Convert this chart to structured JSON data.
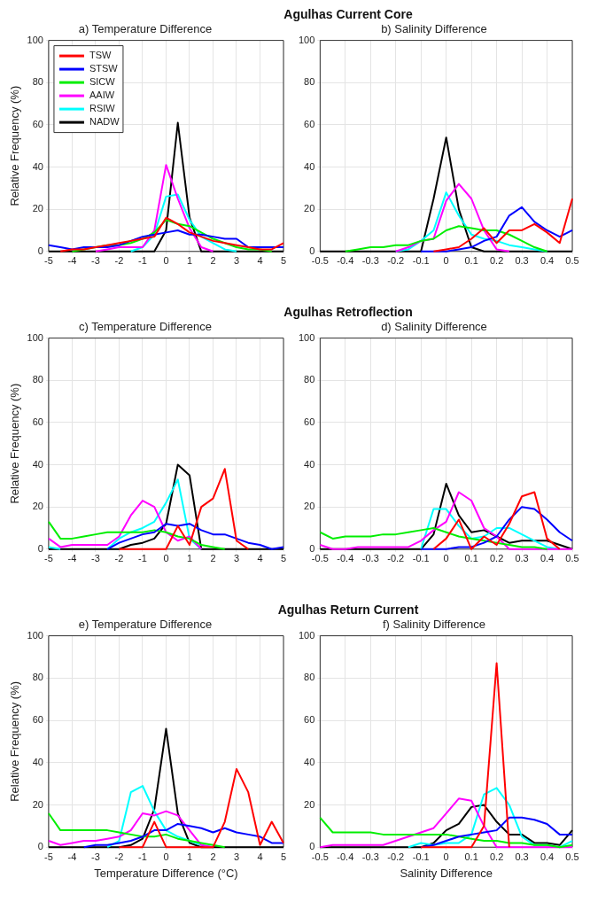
{
  "chart_data": [
    {
      "type": "line",
      "title": "a) Temperature Difference",
      "ylabel": "Relative Frequency (%)",
      "annotations": [
        "Agulhas Current Core"
      ],
      "x": [
        -5,
        -4.5,
        -4,
        -3.5,
        -3,
        -2.5,
        -2,
        -1.5,
        -1,
        -0.5,
        0,
        0.5,
        1,
        1.5,
        2,
        2.5,
        3,
        3.5,
        4,
        4.5,
        5
      ],
      "xlim": [
        -5,
        5
      ],
      "xticks": [
        -5,
        -4,
        -3,
        -2,
        -1,
        0,
        1,
        2,
        3,
        4,
        5
      ],
      "ylim": [
        0,
        100
      ],
      "yticks": [
        0,
        20,
        40,
        60,
        80,
        100
      ],
      "grid": true,
      "legend": "top left",
      "series": [
        {
          "name": "TSW",
          "color": "#ff0000",
          "values": [
            null,
            0,
            1,
            1,
            2,
            3,
            4,
            5,
            6,
            7,
            16,
            13,
            9,
            7,
            5,
            4,
            3,
            2,
            1,
            1,
            4
          ]
        },
        {
          "name": "STSW",
          "color": "#0000ff",
          "values": [
            3,
            2,
            1,
            2,
            2,
            2,
            3,
            5,
            7,
            8,
            9,
            10,
            8,
            8,
            7,
            6,
            6,
            2,
            2,
            2,
            2
          ]
        },
        {
          "name": "SICW",
          "color": "#00ee00",
          "values": [
            null,
            null,
            0,
            1,
            2,
            3,
            3,
            4,
            6,
            9,
            15,
            13,
            12,
            9,
            6,
            4,
            2,
            1,
            1,
            0,
            null
          ]
        },
        {
          "name": "AAIW",
          "color": "#ff00ff",
          "values": [
            null,
            null,
            null,
            null,
            0,
            1,
            2,
            2,
            2,
            10,
            41,
            25,
            11,
            2,
            0,
            null,
            null,
            null,
            null,
            null,
            null
          ]
        },
        {
          "name": "RSIW",
          "color": "#00ffff",
          "values": [
            null,
            null,
            null,
            null,
            null,
            null,
            null,
            0,
            2,
            8,
            26,
            27,
            15,
            7,
            4,
            1,
            0,
            null,
            null,
            null,
            null
          ]
        },
        {
          "name": "NADW",
          "color": "#000000",
          "values": [
            0,
            0,
            0,
            0,
            0,
            0,
            0,
            0,
            0,
            0,
            10,
            61,
            16,
            0,
            0,
            0,
            0,
            0,
            0,
            0,
            0
          ]
        }
      ]
    },
    {
      "type": "line",
      "title": "b) Salinity Difference",
      "x": [
        -0.5,
        -0.45,
        -0.4,
        -0.35,
        -0.3,
        -0.25,
        -0.2,
        -0.15,
        -0.1,
        -0.05,
        0,
        0.05,
        0.1,
        0.15,
        0.2,
        0.25,
        0.3,
        0.35,
        0.4,
        0.45,
        0.5
      ],
      "xlim": [
        -0.5,
        0.5
      ],
      "xticks": [
        -0.5,
        -0.4,
        -0.3,
        -0.2,
        -0.1,
        0,
        0.1,
        0.2,
        0.3,
        0.4,
        0.5
      ],
      "ylim": [
        0,
        100
      ],
      "yticks": [
        0,
        20,
        40,
        60,
        80,
        100
      ],
      "grid": true,
      "series": [
        {
          "color": "#ff0000",
          "values": [
            null,
            null,
            null,
            null,
            null,
            null,
            null,
            null,
            null,
            0,
            1,
            2,
            6,
            11,
            4,
            10,
            10,
            13,
            9,
            4,
            25
          ]
        },
        {
          "color": "#0000ff",
          "values": [
            null,
            null,
            null,
            null,
            null,
            null,
            null,
            null,
            0,
            0,
            0,
            1,
            2,
            5,
            7,
            17,
            21,
            14,
            10,
            7,
            10
          ]
        },
        {
          "color": "#00ee00",
          "values": [
            null,
            null,
            0,
            1,
            2,
            2,
            3,
            3,
            5,
            6,
            10,
            12,
            11,
            10,
            10,
            8,
            5,
            2,
            0,
            null,
            null
          ]
        },
        {
          "color": "#ff00ff",
          "values": [
            null,
            null,
            null,
            null,
            null,
            null,
            0,
            2,
            5,
            6,
            24,
            32,
            25,
            10,
            1,
            0,
            null,
            null,
            null,
            null,
            null
          ]
        },
        {
          "color": "#00ffff",
          "values": [
            null,
            null,
            null,
            null,
            null,
            null,
            0,
            1,
            5,
            10,
            28,
            17,
            8,
            6,
            5,
            3,
            2,
            1,
            0,
            null,
            null
          ]
        },
        {
          "color": "#000000",
          "values": [
            0,
            0,
            0,
            0,
            0,
            0,
            0,
            0,
            0,
            25,
            54,
            20,
            2,
            0,
            0,
            0,
            0,
            0,
            0,
            0,
            0
          ]
        }
      ]
    },
    {
      "type": "line",
      "title": "c) Temperature Difference",
      "ylabel": "Relative Frequency (%)",
      "annotations": [
        "Agulhas Retroflection"
      ],
      "x": [
        -5,
        -4.5,
        -4,
        -3.5,
        -3,
        -2.5,
        -2,
        -1.5,
        -1,
        -0.5,
        0,
        0.5,
        1,
        1.5,
        2,
        2.5,
        3,
        3.5,
        4,
        4.5,
        5
      ],
      "xlim": [
        -5,
        5
      ],
      "xticks": [
        -5,
        -4,
        -3,
        -2,
        -1,
        0,
        1,
        2,
        3,
        4,
        5
      ],
      "ylim": [
        0,
        100
      ],
      "yticks": [
        0,
        20,
        40,
        60,
        80,
        100
      ],
      "grid": true,
      "series": [
        {
          "color": "#ff0000",
          "values": [
            null,
            null,
            null,
            null,
            null,
            null,
            0,
            0,
            0,
            0,
            0,
            11,
            2,
            20,
            24,
            38,
            4,
            0,
            null,
            null,
            null
          ]
        },
        {
          "color": "#0000ff",
          "values": [
            null,
            null,
            null,
            null,
            null,
            0,
            3,
            5,
            7,
            8,
            12,
            11,
            12,
            9,
            7,
            7,
            5,
            3,
            2,
            0,
            1
          ]
        },
        {
          "color": "#00ee00",
          "values": [
            13,
            5,
            5,
            6,
            7,
            8,
            8,
            8,
            8,
            9,
            8,
            6,
            5,
            2,
            1,
            0,
            null,
            null,
            null,
            null,
            null
          ]
        },
        {
          "color": "#ff00ff",
          "values": [
            5,
            1,
            2,
            2,
            2,
            2,
            6,
            16,
            23,
            20,
            8,
            4,
            6,
            0,
            null,
            null,
            null,
            null,
            null,
            null,
            null
          ]
        },
        {
          "color": "#00ffff",
          "values": [
            1,
            0,
            null,
            null,
            null,
            0,
            5,
            8,
            10,
            13,
            22,
            33,
            5,
            0,
            null,
            null,
            null,
            null,
            null,
            null,
            null
          ]
        },
        {
          "color": "#000000",
          "values": [
            0,
            0,
            0,
            0,
            0,
            0,
            0,
            2,
            3,
            5,
            12,
            40,
            35,
            0,
            0,
            0,
            0,
            0,
            0,
            0,
            0
          ]
        }
      ]
    },
    {
      "type": "line",
      "title": "d) Salinity Difference",
      "x": [
        -0.5,
        -0.45,
        -0.4,
        -0.35,
        -0.3,
        -0.25,
        -0.2,
        -0.15,
        -0.1,
        -0.05,
        0,
        0.05,
        0.1,
        0.15,
        0.2,
        0.25,
        0.3,
        0.35,
        0.4,
        0.45,
        0.5
      ],
      "xlim": [
        -0.5,
        0.5
      ],
      "xticks": [
        -0.5,
        -0.4,
        -0.3,
        -0.2,
        -0.1,
        0,
        0.1,
        0.2,
        0.3,
        0.4,
        0.5
      ],
      "ylim": [
        0,
        100
      ],
      "yticks": [
        0,
        20,
        40,
        60,
        80,
        100
      ],
      "grid": true,
      "series": [
        {
          "color": "#ff0000",
          "values": [
            null,
            null,
            null,
            null,
            null,
            null,
            null,
            null,
            null,
            0,
            5,
            14,
            0,
            6,
            2,
            12,
            25,
            27,
            5,
            0,
            null
          ]
        },
        {
          "color": "#0000ff",
          "values": [
            null,
            null,
            null,
            null,
            null,
            null,
            null,
            null,
            0,
            0,
            0,
            1,
            1,
            3,
            6,
            14,
            20,
            19,
            14,
            8,
            4
          ]
        },
        {
          "color": "#00ee00",
          "values": [
            8,
            5,
            6,
            6,
            6,
            7,
            7,
            8,
            9,
            10,
            8,
            6,
            5,
            4,
            3,
            2,
            1,
            1,
            0,
            null,
            null
          ]
        },
        {
          "color": "#ff00ff",
          "values": [
            2,
            0,
            0,
            1,
            1,
            1,
            1,
            1,
            4,
            9,
            13,
            27,
            23,
            10,
            6,
            0,
            0,
            0,
            0,
            0,
            0
          ]
        },
        {
          "color": "#00ffff",
          "values": [
            null,
            null,
            null,
            null,
            null,
            null,
            null,
            null,
            0,
            19,
            19,
            11,
            5,
            6,
            10,
            10,
            7,
            4,
            1,
            0,
            null
          ]
        },
        {
          "color": "#000000",
          "values": [
            0,
            0,
            0,
            0,
            0,
            0,
            0,
            0,
            0,
            7,
            31,
            16,
            8,
            9,
            6,
            3,
            4,
            4,
            4,
            2,
            0
          ]
        }
      ]
    },
    {
      "type": "line",
      "title": "e) Temperature Difference",
      "ylabel": "Relative Frequency (%)",
      "xlabel": "Temperature Difference (°C)",
      "annotations": [
        "Agulhas Return Current"
      ],
      "x": [
        -5,
        -4.5,
        -4,
        -3.5,
        -3,
        -2.5,
        -2,
        -1.5,
        -1,
        -0.5,
        0,
        0.5,
        1,
        1.5,
        2,
        2.5,
        3,
        3.5,
        4,
        4.5,
        5
      ],
      "xlim": [
        -5,
        5
      ],
      "xticks": [
        -5,
        -4,
        -3,
        -2,
        -1,
        0,
        1,
        2,
        3,
        4,
        5
      ],
      "ylim": [
        0,
        100
      ],
      "yticks": [
        0,
        20,
        40,
        60,
        80,
        100
      ],
      "grid": true,
      "series": [
        {
          "color": "#ff0000",
          "values": [
            null,
            null,
            null,
            null,
            null,
            null,
            0,
            0,
            0,
            12,
            0,
            0,
            0,
            0,
            0,
            12,
            37,
            26,
            1,
            12,
            2
          ]
        },
        {
          "color": "#0000ff",
          "values": [
            null,
            null,
            null,
            0,
            1,
            1,
            2,
            3,
            5,
            8,
            8,
            11,
            10,
            9,
            7,
            9,
            7,
            6,
            5,
            2,
            2
          ]
        },
        {
          "color": "#00ee00",
          "values": [
            16,
            8,
            8,
            8,
            8,
            8,
            7,
            6,
            5,
            5,
            6,
            4,
            3,
            2,
            1,
            0,
            null,
            null,
            null,
            null,
            null
          ]
        },
        {
          "color": "#ff00ff",
          "values": [
            3,
            1,
            2,
            3,
            3,
            4,
            5,
            8,
            16,
            15,
            17,
            15,
            8,
            1,
            0,
            null,
            null,
            null,
            null,
            null,
            null
          ]
        },
        {
          "color": "#00ffff",
          "values": [
            null,
            null,
            null,
            null,
            null,
            0,
            3,
            26,
            29,
            17,
            8,
            5,
            3,
            1,
            0,
            null,
            null,
            null,
            null,
            null,
            null
          ]
        },
        {
          "color": "#000000",
          "values": [
            0,
            0,
            0,
            0,
            0,
            0,
            0,
            1,
            4,
            18,
            56,
            16,
            2,
            0,
            0,
            0,
            0,
            0,
            0,
            0,
            0
          ]
        }
      ]
    },
    {
      "type": "line",
      "title": "f) Salinity Difference",
      "xlabel": "Salinity Difference",
      "x": [
        -0.5,
        -0.45,
        -0.4,
        -0.35,
        -0.3,
        -0.25,
        -0.2,
        -0.15,
        -0.1,
        -0.05,
        0,
        0.05,
        0.1,
        0.15,
        0.2,
        0.25,
        0.3,
        0.35,
        0.4,
        0.45,
        0.5
      ],
      "xlim": [
        -0.5,
        0.5
      ],
      "xticks": [
        -0.5,
        -0.4,
        -0.3,
        -0.2,
        -0.1,
        0,
        0.1,
        0.2,
        0.3,
        0.4,
        0.5
      ],
      "ylim": [
        0,
        100
      ],
      "yticks": [
        0,
        20,
        40,
        60,
        80,
        100
      ],
      "grid": true,
      "series": [
        {
          "color": "#ff0000",
          "values": [
            null,
            null,
            null,
            null,
            null,
            null,
            null,
            null,
            0,
            0,
            0,
            0,
            0,
            10,
            87,
            0,
            null,
            null,
            null,
            null,
            null
          ]
        },
        {
          "color": "#0000ff",
          "values": [
            null,
            null,
            null,
            null,
            null,
            null,
            null,
            null,
            0,
            1,
            3,
            5,
            6,
            7,
            8,
            14,
            14,
            13,
            11,
            6,
            6
          ]
        },
        {
          "color": "#00ee00",
          "values": [
            14,
            7,
            7,
            7,
            7,
            6,
            6,
            6,
            6,
            6,
            6,
            5,
            4,
            3,
            3,
            2,
            2,
            1,
            1,
            0,
            1
          ]
        },
        {
          "color": "#ff00ff",
          "values": [
            0,
            1,
            1,
            1,
            1,
            1,
            3,
            5,
            7,
            9,
            16,
            23,
            22,
            10,
            0,
            0,
            0,
            0,
            0,
            0,
            0
          ]
        },
        {
          "color": "#00ffff",
          "values": [
            null,
            null,
            null,
            null,
            null,
            null,
            null,
            0,
            2,
            1,
            2,
            2,
            6,
            25,
            28,
            20,
            5,
            1,
            1,
            0,
            3
          ]
        },
        {
          "color": "#000000",
          "values": [
            0,
            0,
            0,
            0,
            0,
            0,
            0,
            0,
            0,
            2,
            8,
            11,
            19,
            20,
            12,
            6,
            6,
            2,
            2,
            1,
            8
          ]
        }
      ]
    }
  ]
}
